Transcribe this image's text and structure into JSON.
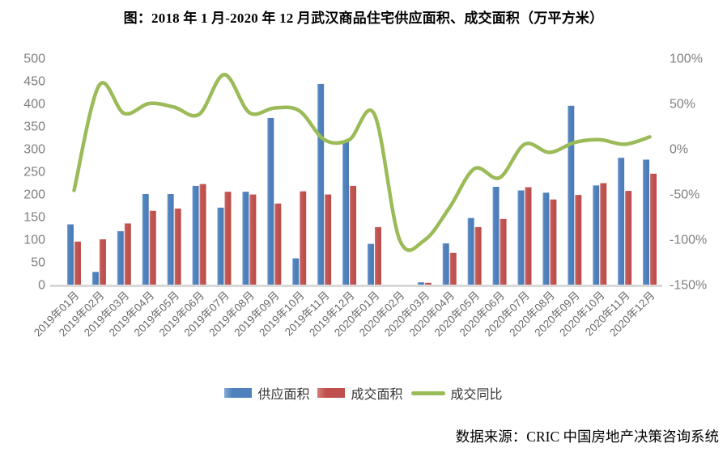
{
  "title": "图：2018 年 1 月-2020 年 12 月武汉商品住宅供应面积、成交面积（万平方米）",
  "source": "数据来源：CRIC 中国房地产决策咨询系统",
  "colors": {
    "supply_bar": "#4F81BD",
    "transaction_bar": "#C0504D",
    "yoy_line": "#9BBB59",
    "axis_text": "#7f7f7f",
    "category_text": "#6a6a6a",
    "baseline": "#d9d9d9"
  },
  "chart_data": {
    "type": "bar",
    "title": "图：2018 年 1 月-2020 年 12 月武汉商品住宅供应面积、成交面积（万平方米）",
    "categories": [
      "2019年01月",
      "2019年02月",
      "2019年03月",
      "2019年04月",
      "2019年05月",
      "2019年06月",
      "2019年07月",
      "2019年08月",
      "2019年09月",
      "2019年10月",
      "2019年11月",
      "2019年12月",
      "2020年01月",
      "2020年02月",
      "2020年03月",
      "2020年04月",
      "2020年05月",
      "2020年06月",
      "2020年07月",
      "2020年08月",
      "2020年09月",
      "2020年10月",
      "2020年11月",
      "2020年12月"
    ],
    "series": [
      {
        "name": "供应面积",
        "type": "bar",
        "axis": "left",
        "color": "#4F81BD",
        "values": [
          133,
          28,
          118,
          200,
          200,
          218,
          170,
          205,
          368,
          58,
          443,
          317,
          90,
          0,
          5,
          91,
          147,
          216,
          208,
          203,
          395,
          219,
          280,
          276
        ]
      },
      {
        "name": "成交面积",
        "type": "bar",
        "axis": "left",
        "color": "#C0504D",
        "values": [
          95,
          100,
          135,
          163,
          168,
          222,
          205,
          199,
          179,
          206,
          199,
          218,
          127,
          0,
          4,
          70,
          127,
          145,
          215,
          188,
          198,
          224,
          207,
          245
        ]
      },
      {
        "name": "成交同比",
        "type": "line",
        "axis": "right",
        "color": "#9BBB59",
        "unit": "%",
        "values": [
          -46,
          70,
          39,
          50,
          46,
          38,
          82,
          40,
          45,
          42,
          10,
          10,
          38,
          -100,
          -101,
          -65,
          -22,
          -32,
          5,
          -4,
          7,
          10,
          5,
          13
        ]
      }
    ],
    "left_axis": {
      "min": 0,
      "max": 500,
      "step": 50,
      "ticks": [
        "500",
        "450",
        "400",
        "350",
        "300",
        "250",
        "200",
        "150",
        "100",
        "50",
        "0"
      ]
    },
    "right_axis": {
      "min": -150,
      "max": 100,
      "step": 50,
      "ticks": [
        "100%",
        "50%",
        "0%",
        "-50%",
        "-100%",
        "-150%"
      ]
    },
    "legend_position": "bottom",
    "grid": false,
    "xlabel": "",
    "ylabel": ""
  }
}
